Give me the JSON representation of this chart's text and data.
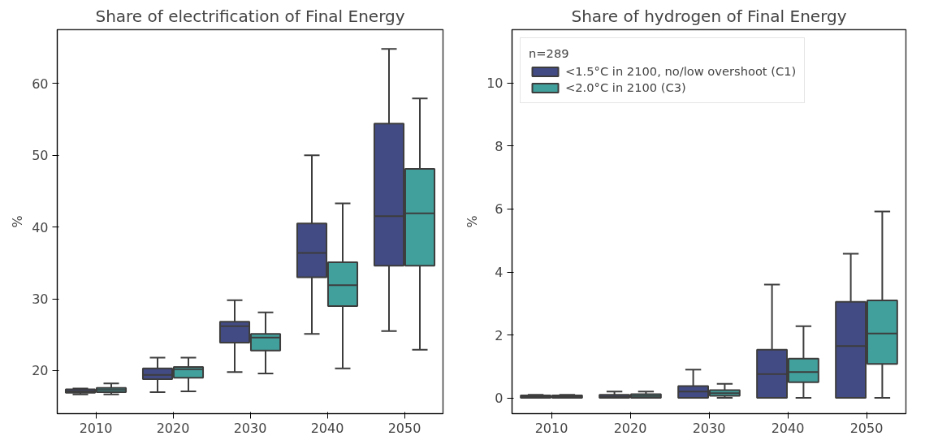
{
  "chart_data": [
    {
      "type": "box",
      "title": "Share of electrification of Final Energy",
      "ylabel": "%",
      "categories": [
        "2010",
        "2020",
        "2030",
        "2040",
        "2050"
      ],
      "ylim": [
        14,
        67.5
      ],
      "yticks": [
        20,
        30,
        40,
        50,
        60
      ],
      "grid": false,
      "legend": false,
      "series": [
        {
          "color": "#434b85",
          "boxes": [
            {
              "low": 16.7,
              "q1": 16.9,
              "median": 17.1,
              "q3": 17.4,
              "high": 17.5
            },
            {
              "low": 17.0,
              "q1": 18.8,
              "median": 19.4,
              "q3": 20.3,
              "high": 21.8
            },
            {
              "low": 19.8,
              "q1": 23.9,
              "median": 26.2,
              "q3": 26.8,
              "high": 29.8
            },
            {
              "low": 25.1,
              "q1": 33.0,
              "median": 36.4,
              "q3": 40.5,
              "high": 50.0
            },
            {
              "low": 25.5,
              "q1": 34.6,
              "median": 41.5,
              "q3": 54.4,
              "high": 64.8
            }
          ]
        },
        {
          "color": "#41a09c",
          "boxes": [
            {
              "low": 16.7,
              "q1": 17.0,
              "median": 17.3,
              "q3": 17.6,
              "high": 18.2
            },
            {
              "low": 17.1,
              "q1": 19.0,
              "median": 20.2,
              "q3": 20.5,
              "high": 21.8
            },
            {
              "low": 19.6,
              "q1": 22.8,
              "median": 24.6,
              "q3": 25.1,
              "high": 28.1
            },
            {
              "low": 20.3,
              "q1": 29.0,
              "median": 31.9,
              "q3": 35.1,
              "high": 43.3
            },
            {
              "low": 22.9,
              "q1": 34.6,
              "median": 41.9,
              "q3": 48.1,
              "high": 57.9
            }
          ]
        }
      ]
    },
    {
      "type": "box",
      "title": "Share of hydrogen of Final Energy",
      "ylabel": "%",
      "legend_title": "n=289",
      "categories": [
        "2010",
        "2020",
        "2030",
        "2040",
        "2050"
      ],
      "ylim": [
        -0.5,
        11.7
      ],
      "yticks": [
        0,
        2,
        4,
        6,
        8,
        10
      ],
      "grid": false,
      "legend": "top left",
      "series": [
        {
          "name": "<1.5°C in 2100, no/low overshoot (C1)",
          "color": "#434b85",
          "boxes": [
            {
              "low": 0,
              "q1": 0,
              "median": 0.03,
              "q3": 0.08,
              "high": 0.1
            },
            {
              "low": 0,
              "q1": 0,
              "median": 0.04,
              "q3": 0.1,
              "high": 0.2
            },
            {
              "low": 0,
              "q1": 0,
              "median": 0.2,
              "q3": 0.38,
              "high": 0.9
            },
            {
              "low": 0,
              "q1": 0,
              "median": 0.76,
              "q3": 1.53,
              "high": 3.6
            },
            {
              "low": 0,
              "q1": 0,
              "median": 1.65,
              "q3": 3.05,
              "high": 4.58
            }
          ]
        },
        {
          "name": "<2.0°C in 2100 (C3)",
          "color": "#41a09c",
          "boxes": [
            {
              "low": 0,
              "q1": 0,
              "median": 0.04,
              "q3": 0.08,
              "high": 0.1
            },
            {
              "low": 0,
              "q1": 0,
              "median": 0.06,
              "q3": 0.12,
              "high": 0.2
            },
            {
              "low": 0,
              "q1": 0.07,
              "median": 0.15,
              "q3": 0.25,
              "high": 0.45
            },
            {
              "low": 0,
              "q1": 0.5,
              "median": 0.82,
              "q3": 1.25,
              "high": 2.28
            },
            {
              "low": 0,
              "q1": 1.08,
              "median": 2.05,
              "q3": 3.1,
              "high": 5.92
            }
          ]
        }
      ]
    }
  ]
}
